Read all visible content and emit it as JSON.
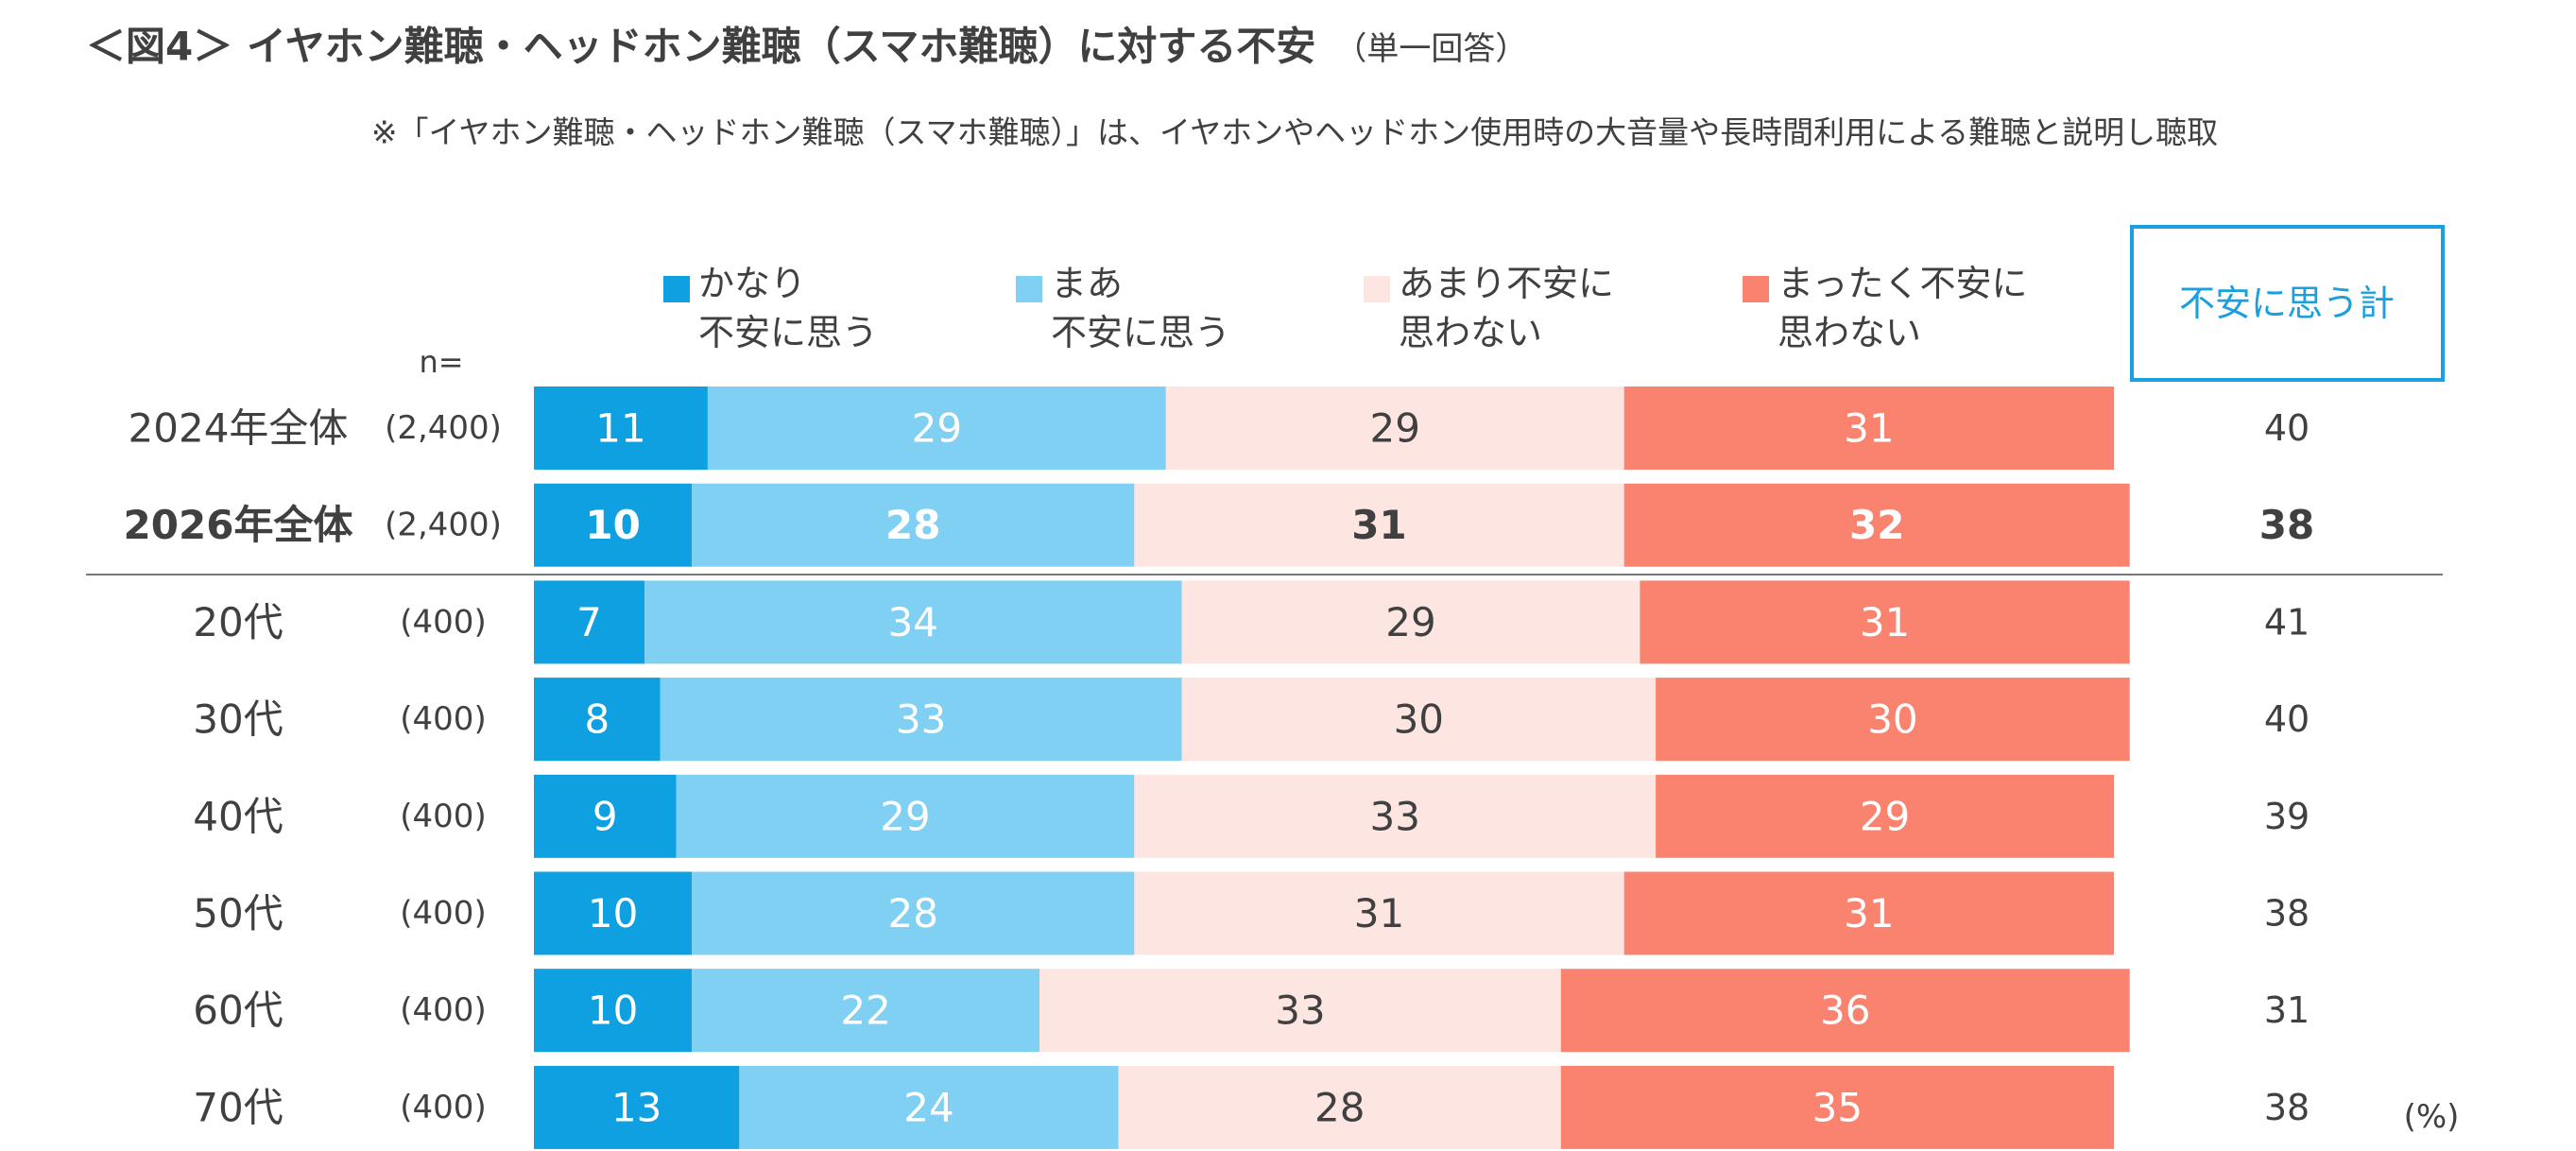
{
  "chart_data": {
    "type": "stacked-bar",
    "title": "＜図4＞ イヤホン難聴・ヘッドホン難聴（スマホ難聴）に対する不安",
    "title_note": "（単一回答）",
    "subtitle": "※「イヤホン難聴・ヘッドホン難聴（スマホ難聴）」は、イヤホンやヘッドホン使用時の大音量や長時間利用による難聴と説明し聴取",
    "n_label": "n=",
    "categories": [
      "2024年全体",
      "2026年全体",
      "20代",
      "30代",
      "40代",
      "50代",
      "60代",
      "70代"
    ],
    "n": [
      "(2,400)",
      "(2,400)",
      "(400)",
      "(400)",
      "(400)",
      "(400)",
      "(400)",
      "(400)"
    ],
    "highlight": 1,
    "xlim": [
      0,
      100
    ],
    "series": [
      {
        "name": "かなり\n不安に思う",
        "color": "#0ea0e0",
        "values": [
          11,
          10,
          7,
          8,
          9,
          10,
          10,
          13
        ]
      },
      {
        "name": "まあ\n不安に思う",
        "color": "#80d0f4",
        "values": [
          29,
          28,
          34,
          33,
          29,
          28,
          22,
          24
        ]
      },
      {
        "name": "あまり不安に\n思わない",
        "color": "#fde5e1",
        "values": [
          29,
          31,
          29,
          30,
          33,
          31,
          33,
          28
        ]
      },
      {
        "name": "まったく不安に\n思わない",
        "color": "#fa836f",
        "values": [
          31,
          32,
          31,
          30,
          29,
          31,
          36,
          35
        ]
      }
    ],
    "total": {
      "name": "不安に思う計",
      "values": [
        40,
        38,
        41,
        40,
        39,
        38,
        31,
        38
      ]
    },
    "unit": "(%)"
  }
}
